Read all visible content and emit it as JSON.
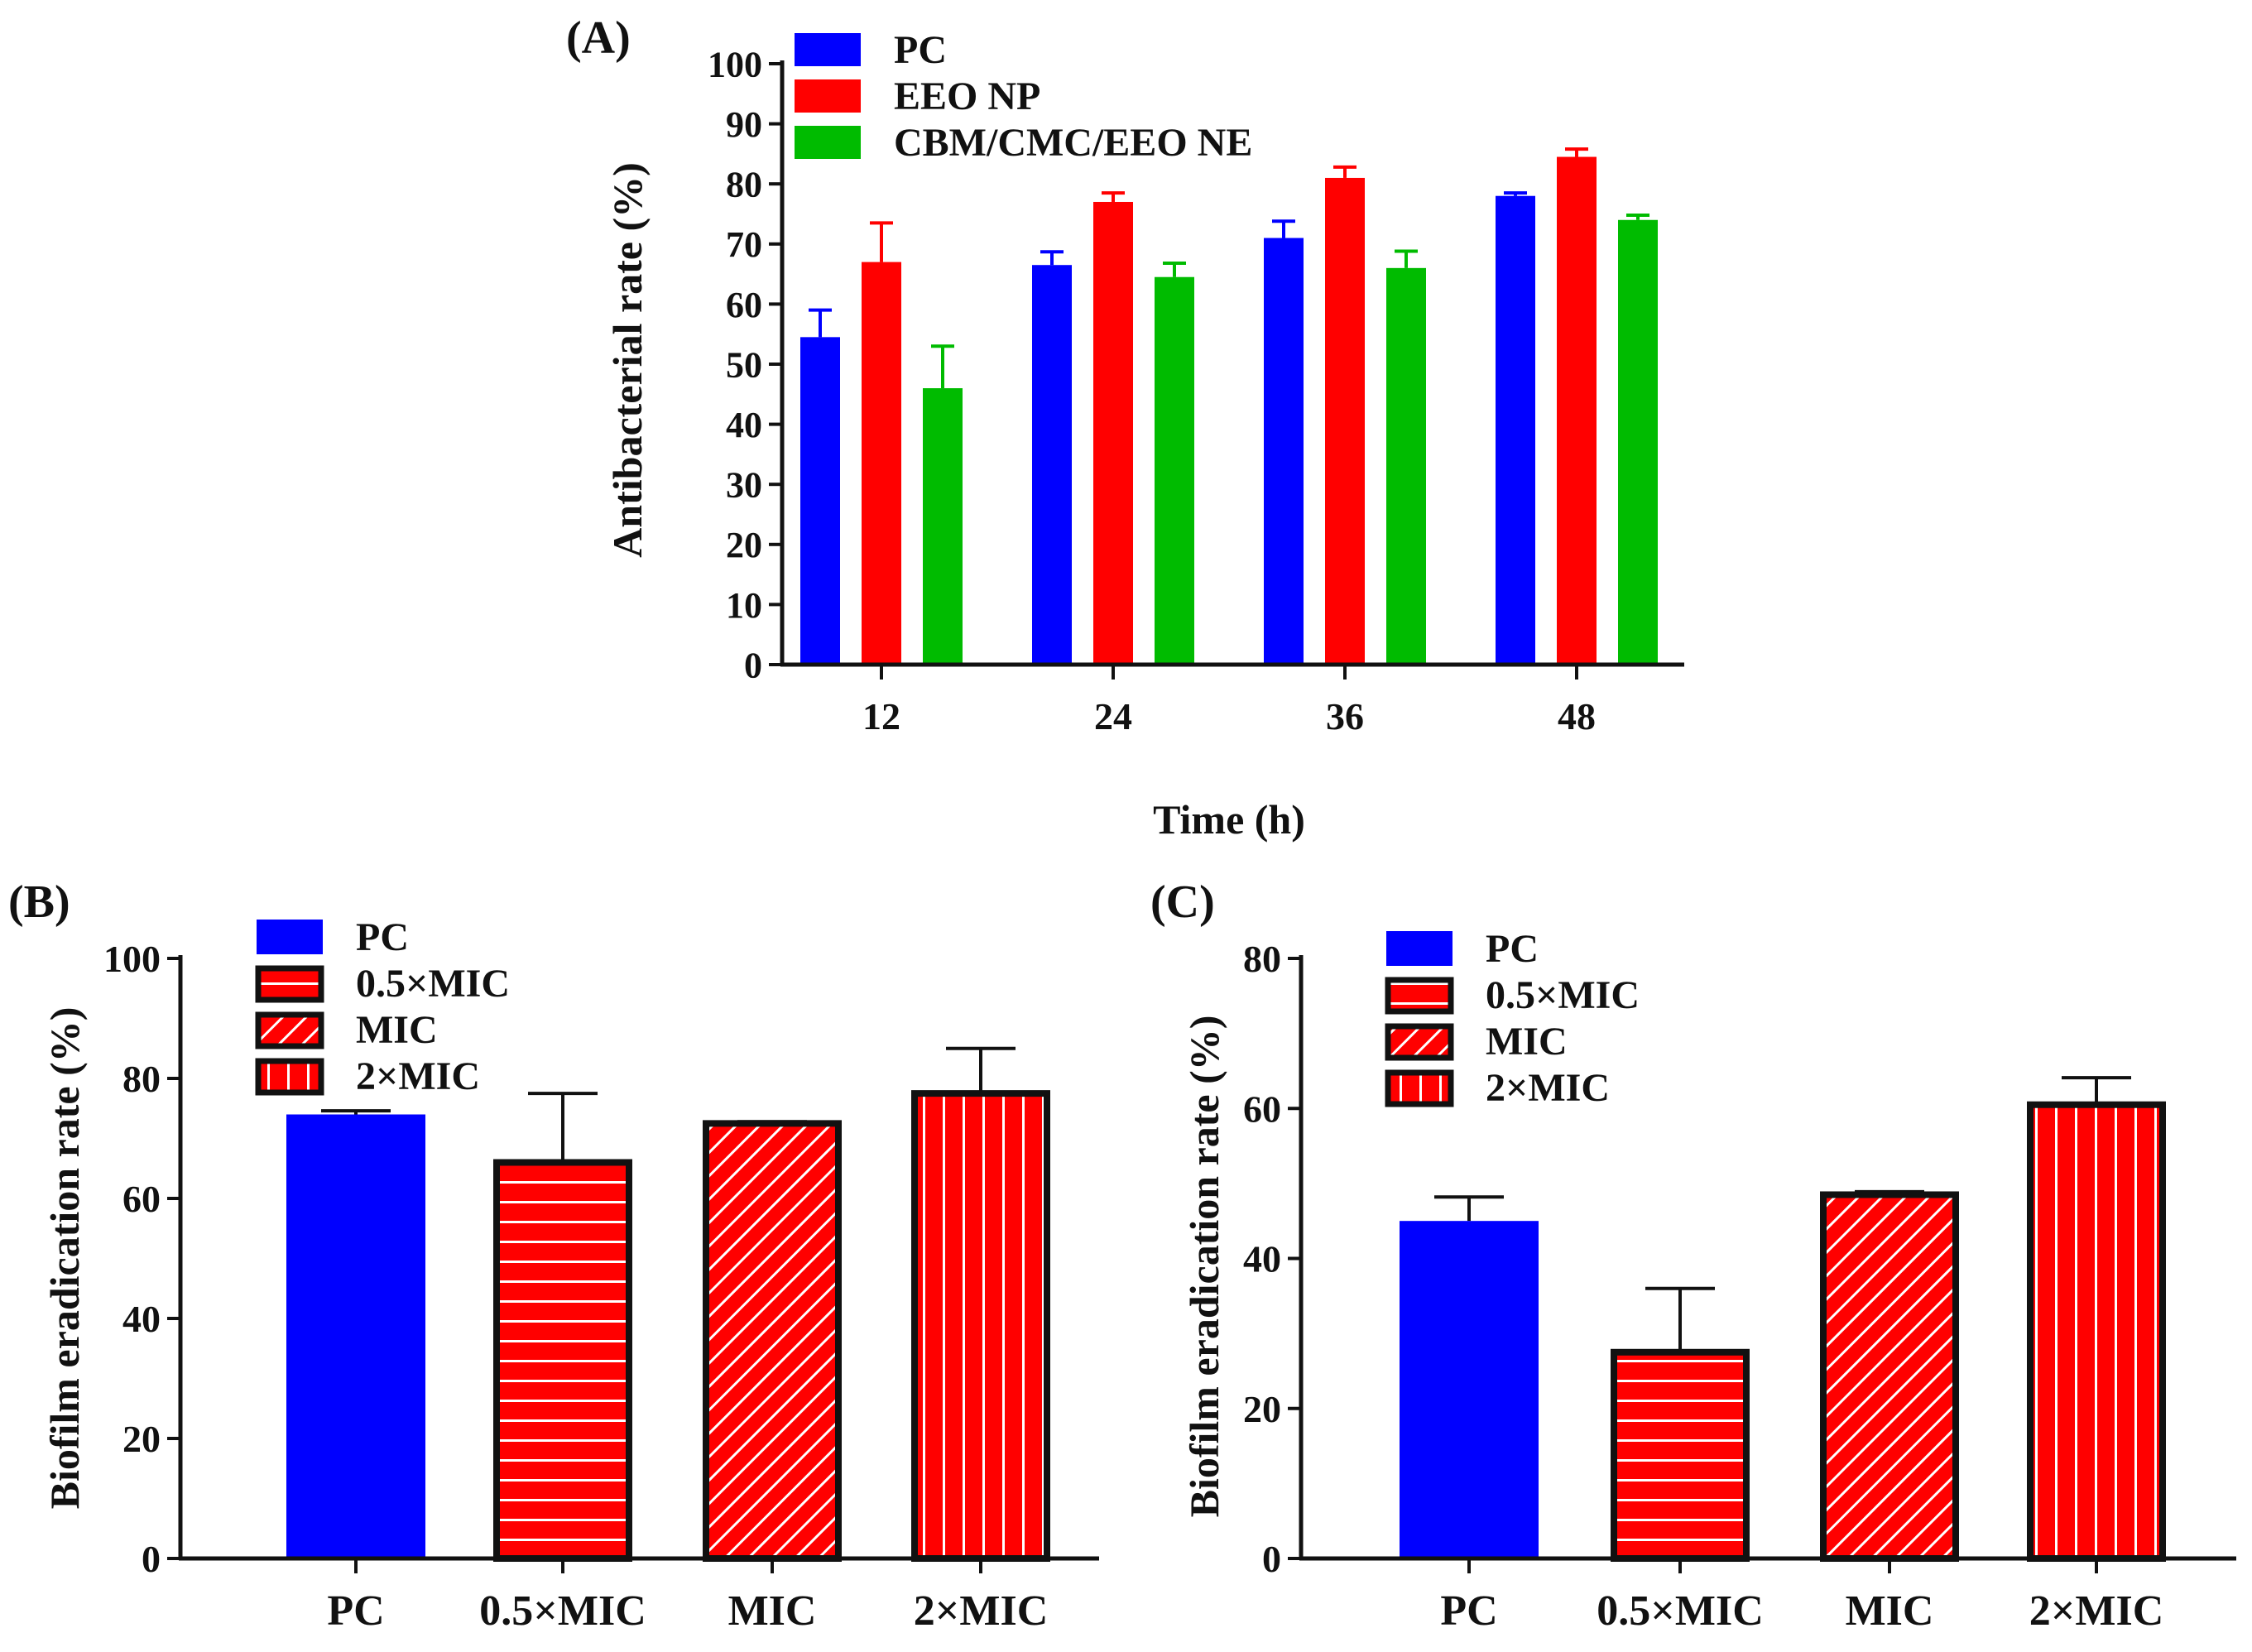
{
  "chart_data": [
    {
      "panel": "(A)",
      "type": "bar",
      "title": "",
      "xlabel": "Time (h)",
      "ylabel": "Antibacterial rate (%)",
      "ylim": [
        0,
        100
      ],
      "yticks": [
        0,
        10,
        20,
        30,
        40,
        50,
        60,
        70,
        80,
        90,
        100
      ],
      "categories": [
        "12",
        "24",
        "36",
        "48"
      ],
      "series": [
        {
          "name": "PC",
          "color": "#0000ff",
          "values": [
            54.5,
            66.5,
            71,
            78
          ],
          "errors": [
            4.5,
            2.2,
            2.8,
            0.5
          ]
        },
        {
          "name": "EEO NP",
          "color": "#ff0000",
          "values": [
            67,
            77,
            81,
            84.5
          ],
          "errors": [
            6.5,
            1.5,
            1.8,
            1.3
          ]
        },
        {
          "name": "CBM/CMC/EEO NE",
          "color": "#00bb00",
          "values": [
            46,
            64.5,
            66,
            74
          ],
          "errors": [
            7,
            2.3,
            2.8,
            0.8
          ]
        }
      ],
      "legend": "top-left"
    },
    {
      "panel": "(B)",
      "type": "bar",
      "title": "",
      "xlabel": "",
      "ylabel": "Biofilm eradication rate (%)",
      "ylim": [
        0,
        100
      ],
      "yticks": [
        0,
        20,
        40,
        60,
        80,
        100
      ],
      "categories": [
        "PC",
        "0.5×MIC",
        "MIC",
        "2×MIC"
      ],
      "values": [
        74,
        66,
        72.5,
        77.5
      ],
      "errors": [
        0.6,
        11.5,
        0.3,
        7.5
      ],
      "legend_entries": [
        "PC",
        "0.5×MIC",
        "MIC",
        "2×MIC"
      ],
      "legend": "top-left"
    },
    {
      "panel": "(C)",
      "type": "bar",
      "title": "",
      "xlabel": "",
      "ylabel": "Biofilm eradication rate (%)",
      "ylim": [
        0,
        80
      ],
      "yticks": [
        0,
        20,
        40,
        60,
        80
      ],
      "categories": [
        "PC",
        "0.5×MIC",
        "MIC",
        "2×MIC"
      ],
      "values": [
        45,
        27.5,
        48.5,
        60.5
      ],
      "errors": [
        3.2,
        8.5,
        0.4,
        3.6
      ],
      "legend_entries": [
        "PC",
        "0.5×MIC",
        "MIC",
        "2×MIC"
      ],
      "legend": "top-left"
    }
  ],
  "styles": {
    "pc_color": "#0000ff",
    "treated_color": "#ff0000",
    "stripe_color": "#ffffff",
    "border_color": "#111111"
  }
}
